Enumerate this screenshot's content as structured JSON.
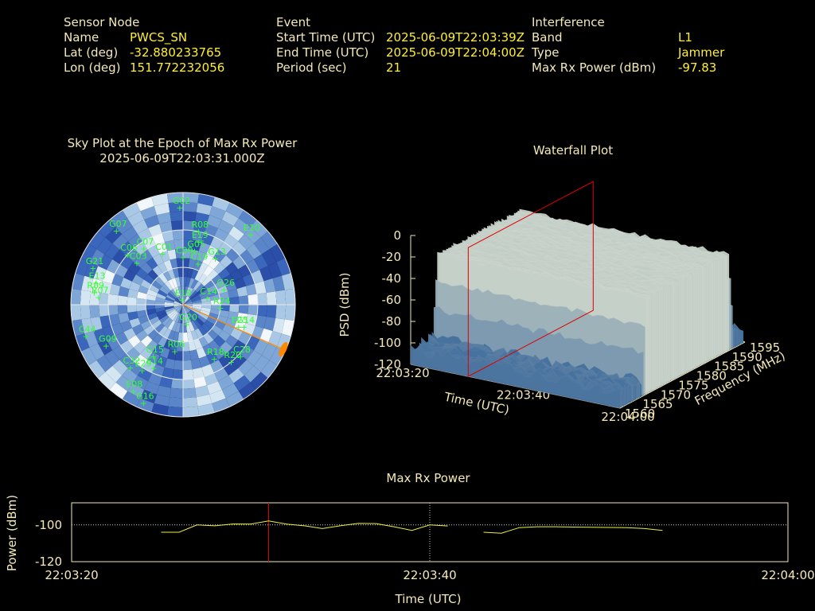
{
  "header": {
    "sensor": {
      "heading": "Sensor Node",
      "name_label": "Name",
      "name_value": "PWCS_SN",
      "lat_label": "Lat (deg)",
      "lat_value": "-32.880233765",
      "lon_label": "Lon (deg)",
      "lon_value": "151.772232056"
    },
    "event": {
      "heading": "Event",
      "start_label": "Start Time (UTC)",
      "start_value": "2025-06-09T22:03:39Z",
      "end_label": "End Time (UTC)",
      "end_value": "2025-06-09T22:04:00Z",
      "period_label": "Period (sec)",
      "period_value": "21"
    },
    "interference": {
      "heading": "Interference",
      "band_label": "Band",
      "band_value": "L1",
      "type_label": "Type",
      "type_value": "Jammer",
      "power_label": "Max Rx Power (dBm)",
      "power_value": "-97.83"
    }
  },
  "colors": {
    "background": "#000000",
    "text": "#f5e9b8",
    "value": "#ffee33",
    "satellite": "#33ff33",
    "marker": "#dd0000",
    "direction": "#ff8800",
    "trace": "#eeee44"
  },
  "chart_data": [
    {
      "type": "scatter",
      "title": "Sky Plot at the Epoch of Max Rx Power",
      "subtitle": "2025-06-09T22:03:31.000Z",
      "satellites": [
        {
          "id": "G02",
          "az": -2,
          "el": 12
        },
        {
          "id": "R08",
          "az": 12,
          "el": 30
        },
        {
          "id": "E19",
          "az": 14,
          "el": 38
        },
        {
          "id": "G05",
          "az": 12,
          "el": 46
        },
        {
          "id": "C09",
          "az": 0,
          "el": 52
        },
        {
          "id": "C01",
          "az": -22,
          "el": 46
        },
        {
          "id": "G07",
          "az": -42,
          "el": 10
        },
        {
          "id": "C07",
          "az": -35,
          "el": 35
        },
        {
          "id": "C06",
          "az": -48,
          "el": 30
        },
        {
          "id": "C03",
          "az": -48,
          "el": 40
        },
        {
          "id": "E10",
          "az": 44,
          "el": 12
        },
        {
          "id": "C19",
          "az": 20,
          "el": 55
        },
        {
          "id": "G13",
          "az": 35,
          "el": 45
        },
        {
          "id": "G21",
          "az": -68,
          "el": 12
        },
        {
          "id": "E13",
          "az": -76,
          "el": 18
        },
        {
          "id": "R09",
          "az": -82,
          "el": 18
        },
        {
          "id": "R07",
          "az": -85,
          "el": 22
        },
        {
          "id": "E19",
          "az": -10,
          "el": 86
        },
        {
          "id": "C14",
          "az": 75,
          "el": 70
        },
        {
          "id": "G26",
          "az": 70,
          "el": 55
        },
        {
          "id": "R24",
          "az": 95,
          "el": 60
        },
        {
          "id": "G14",
          "az": 110,
          "el": 38
        },
        {
          "id": "E25",
          "az": 112,
          "el": 42
        },
        {
          "id": "G09",
          "az": -118,
          "el": 20
        },
        {
          "id": "C44",
          "az": -108,
          "el": 8
        },
        {
          "id": "G15",
          "az": -150,
          "el": 42
        },
        {
          "id": "E14",
          "az": -155,
          "el": 34
        },
        {
          "id": "R06",
          "az": -170,
          "el": 52
        },
        {
          "id": "C32",
          "az": -140,
          "el": 24
        },
        {
          "id": "E29",
          "az": -148,
          "el": 28
        },
        {
          "id": "G20",
          "az": 170,
          "el": 74
        },
        {
          "id": "R18",
          "az": 150,
          "el": 40
        },
        {
          "id": "R20",
          "az": 140,
          "el": 30
        },
        {
          "id": "E08",
          "az": -150,
          "el": 10
        },
        {
          "id": "G16",
          "az": -158,
          "el": 5
        },
        {
          "id": "C28",
          "az": 132,
          "el": 28
        }
      ],
      "jammer_direction": {
        "az": 114,
        "el": 2
      }
    },
    {
      "type": "area",
      "title": "Waterfall Plot",
      "xlabel": "Time (UTC)",
      "ylabel": "Frequency (MHz)",
      "zlabel": "PSD (dBm)",
      "xticks": [
        "22:03:20",
        "22:03:40",
        "22:04:00"
      ],
      "yticks": [
        1560,
        1565,
        1570,
        1575,
        1580,
        1585,
        1590,
        1595
      ],
      "zticks": [
        0,
        -20,
        -40,
        -60,
        -80,
        -100,
        -120
      ],
      "time_range_s": [
        0,
        40
      ],
      "freq_range_mhz": [
        1560,
        1595
      ],
      "psd_range_dbm": [
        -120,
        0
      ],
      "jam_band_mhz": [
        1566,
        1592
      ],
      "jam_level_dbm": -30,
      "noise_floor_dbm": -105,
      "marker_time": "22:03:31"
    },
    {
      "type": "line",
      "title": "Max Rx Power",
      "xlabel": "Time (UTC)",
      "ylabel": "Power (dBm)",
      "xticks": [
        "22:03:20",
        "22:03:40",
        "22:04:00"
      ],
      "yticks": [
        -100,
        -120
      ],
      "xlim_s": [
        0,
        40
      ],
      "ylim": [
        -120,
        -88
      ],
      "marker_time_s": 11,
      "series": [
        {
          "x": [
            5,
            6,
            7,
            8,
            9,
            10,
            11,
            12,
            13,
            14,
            15,
            16,
            17,
            18,
            19,
            20,
            21
          ],
          "y": [
            -104,
            -104,
            -100,
            -100.5,
            -99.5,
            -99.6,
            -97.8,
            -99.6,
            -100.5,
            -102,
            -100.5,
            -99.2,
            -99.3,
            -101,
            -103,
            -100,
            -100.6
          ]
        },
        {
          "x": [
            23,
            24,
            25,
            26,
            27,
            28,
            29,
            30,
            31,
            32,
            33
          ],
          "y": [
            -104,
            -104.5,
            -101.5,
            -101,
            -101,
            -101.2,
            -101.3,
            -101.4,
            -101.5,
            -102,
            -103
          ]
        }
      ]
    }
  ]
}
